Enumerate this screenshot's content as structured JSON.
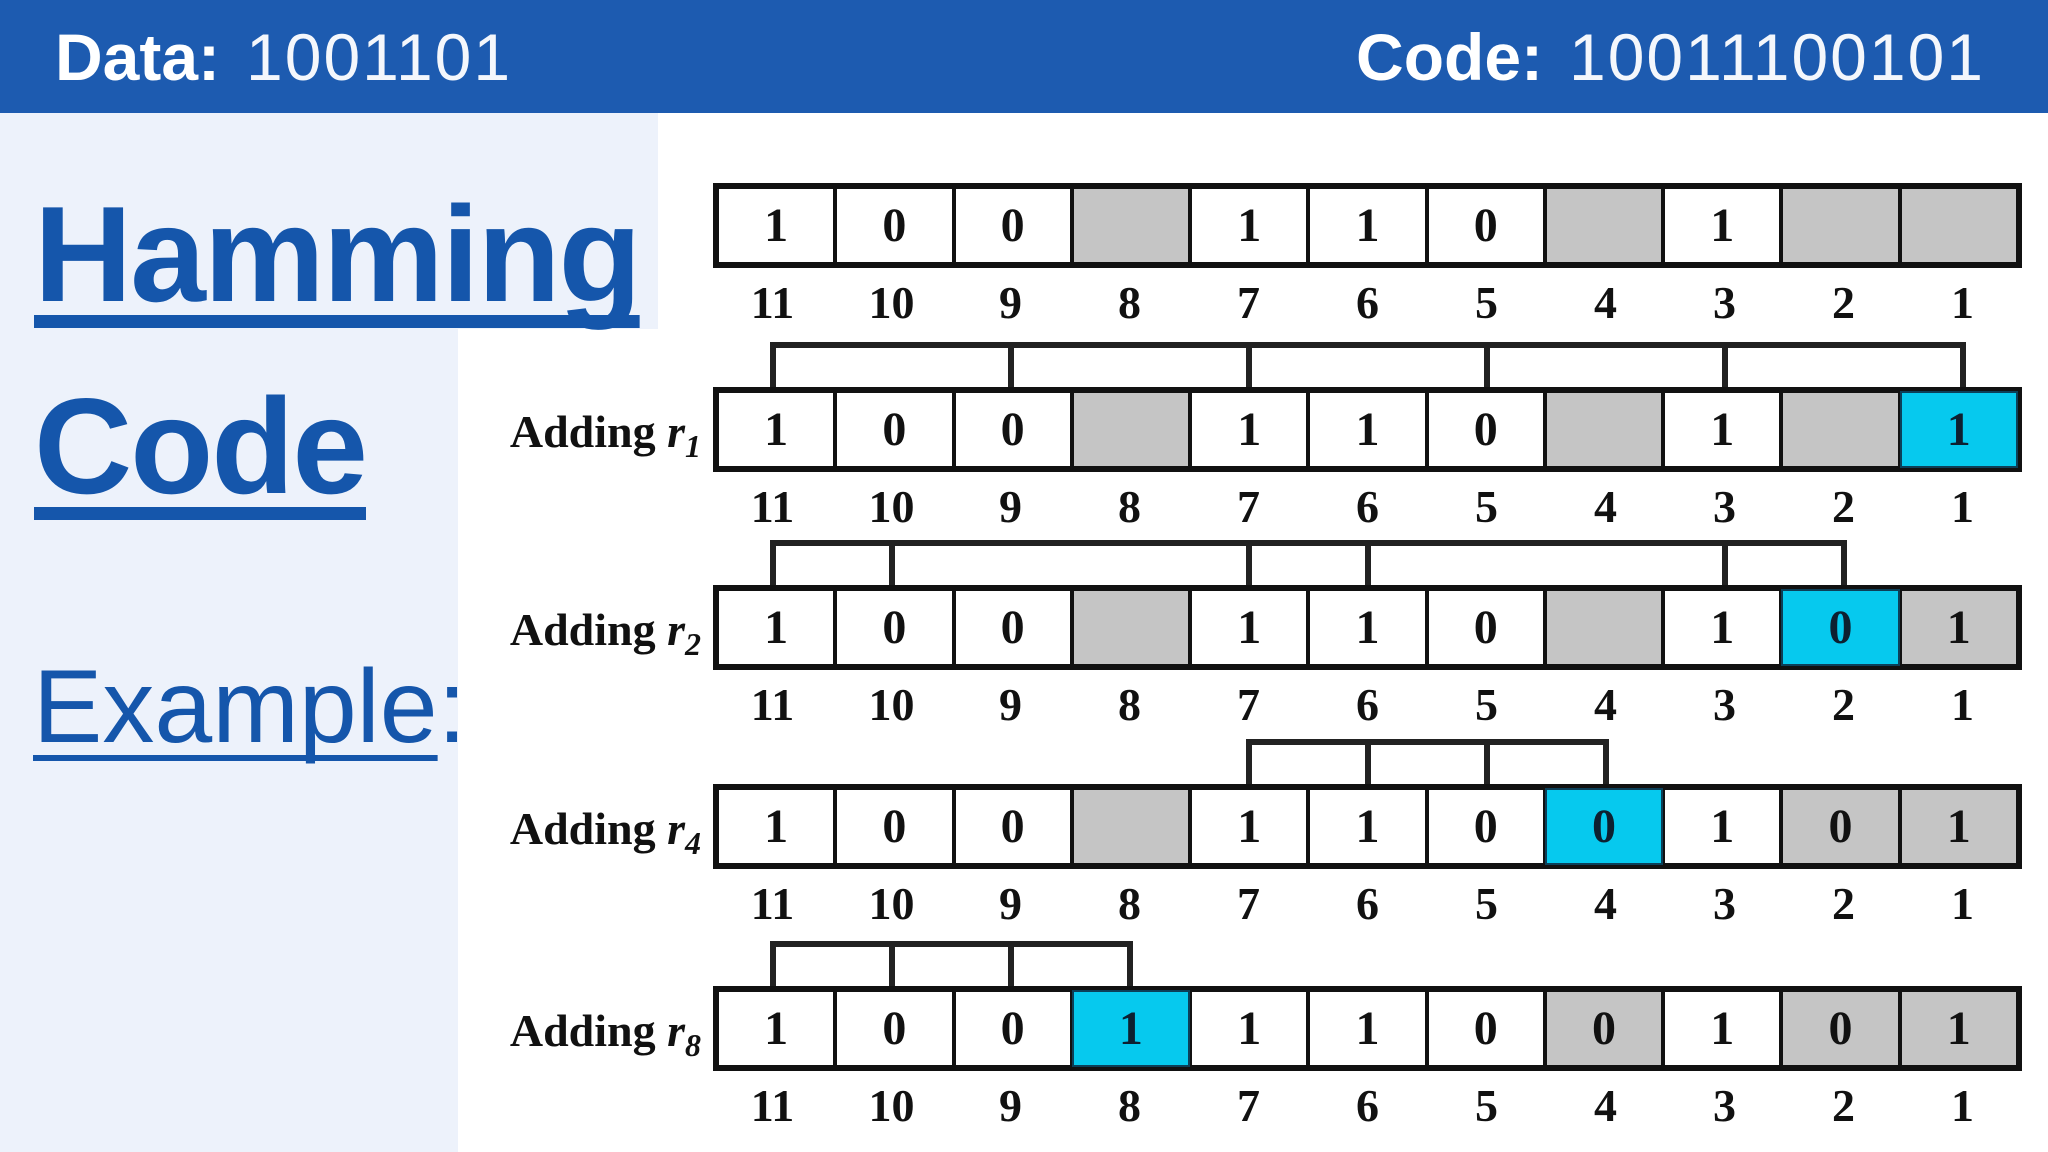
{
  "header": {
    "data_label": "Data:",
    "data_value": "1001101",
    "code_label": "Code:",
    "code_value": "10011100101"
  },
  "panel": {
    "title_line1": "Hamming",
    "title_line2": "Code",
    "example_word": "Example",
    "example_colon": ":"
  },
  "diagram": {
    "positions": [
      "11",
      "10",
      "9",
      "8",
      "7",
      "6",
      "5",
      "4",
      "3",
      "2",
      "1"
    ],
    "rows": [
      {
        "label": "",
        "r_var": "",
        "r_sub": "",
        "bracket_positions": [],
        "cells": [
          {
            "v": "1",
            "t": "white"
          },
          {
            "v": "0",
            "t": "white"
          },
          {
            "v": "0",
            "t": "white"
          },
          {
            "v": "",
            "t": "gray"
          },
          {
            "v": "1",
            "t": "white"
          },
          {
            "v": "1",
            "t": "white"
          },
          {
            "v": "0",
            "t": "white"
          },
          {
            "v": "",
            "t": "gray"
          },
          {
            "v": "1",
            "t": "white"
          },
          {
            "v": "",
            "t": "gray"
          },
          {
            "v": "",
            "t": "gray"
          }
        ]
      },
      {
        "label": "Adding",
        "r_var": "r",
        "r_sub": "1",
        "bracket_positions": [
          11,
          9,
          7,
          5,
          3,
          1
        ],
        "cells": [
          {
            "v": "1",
            "t": "white"
          },
          {
            "v": "0",
            "t": "white"
          },
          {
            "v": "0",
            "t": "white"
          },
          {
            "v": "",
            "t": "gray"
          },
          {
            "v": "1",
            "t": "white"
          },
          {
            "v": "1",
            "t": "white"
          },
          {
            "v": "0",
            "t": "white"
          },
          {
            "v": "",
            "t": "gray"
          },
          {
            "v": "1",
            "t": "white"
          },
          {
            "v": "",
            "t": "gray"
          },
          {
            "v": "1",
            "t": "cyan"
          }
        ]
      },
      {
        "label": "Adding",
        "r_var": "r",
        "r_sub": "2",
        "bracket_positions": [
          11,
          10,
          7,
          6,
          3,
          2
        ],
        "cells": [
          {
            "v": "1",
            "t": "white"
          },
          {
            "v": "0",
            "t": "white"
          },
          {
            "v": "0",
            "t": "white"
          },
          {
            "v": "",
            "t": "gray"
          },
          {
            "v": "1",
            "t": "white"
          },
          {
            "v": "1",
            "t": "white"
          },
          {
            "v": "0",
            "t": "white"
          },
          {
            "v": "",
            "t": "gray"
          },
          {
            "v": "1",
            "t": "white"
          },
          {
            "v": "0",
            "t": "cyan"
          },
          {
            "v": "1",
            "t": "gray"
          }
        ]
      },
      {
        "label": "Adding",
        "r_var": "r",
        "r_sub": "4",
        "bracket_positions": [
          7,
          6,
          5,
          4
        ],
        "cells": [
          {
            "v": "1",
            "t": "white"
          },
          {
            "v": "0",
            "t": "white"
          },
          {
            "v": "0",
            "t": "white"
          },
          {
            "v": "",
            "t": "gray"
          },
          {
            "v": "1",
            "t": "white"
          },
          {
            "v": "1",
            "t": "white"
          },
          {
            "v": "0",
            "t": "white"
          },
          {
            "v": "0",
            "t": "cyan"
          },
          {
            "v": "1",
            "t": "white"
          },
          {
            "v": "0",
            "t": "gray"
          },
          {
            "v": "1",
            "t": "gray"
          }
        ]
      },
      {
        "label": "Adding",
        "r_var": "r",
        "r_sub": "8",
        "bracket_positions": [
          11,
          10,
          9,
          8
        ],
        "cells": [
          {
            "v": "1",
            "t": "white"
          },
          {
            "v": "0",
            "t": "white"
          },
          {
            "v": "0",
            "t": "white"
          },
          {
            "v": "1",
            "t": "cyan"
          },
          {
            "v": "1",
            "t": "white"
          },
          {
            "v": "1",
            "t": "white"
          },
          {
            "v": "0",
            "t": "white"
          },
          {
            "v": "0",
            "t": "gray"
          },
          {
            "v": "1",
            "t": "white"
          },
          {
            "v": "0",
            "t": "gray"
          },
          {
            "v": "1",
            "t": "gray"
          }
        ]
      }
    ]
  },
  "colors": {
    "header_bg": "#1d5bb0",
    "panel_bg": "#edf2fb",
    "title_blue": "#1556ab",
    "cell_gray": "#c5c5c5",
    "cell_cyan": "#06c9ee",
    "cyan_border": "#0c3f58"
  }
}
